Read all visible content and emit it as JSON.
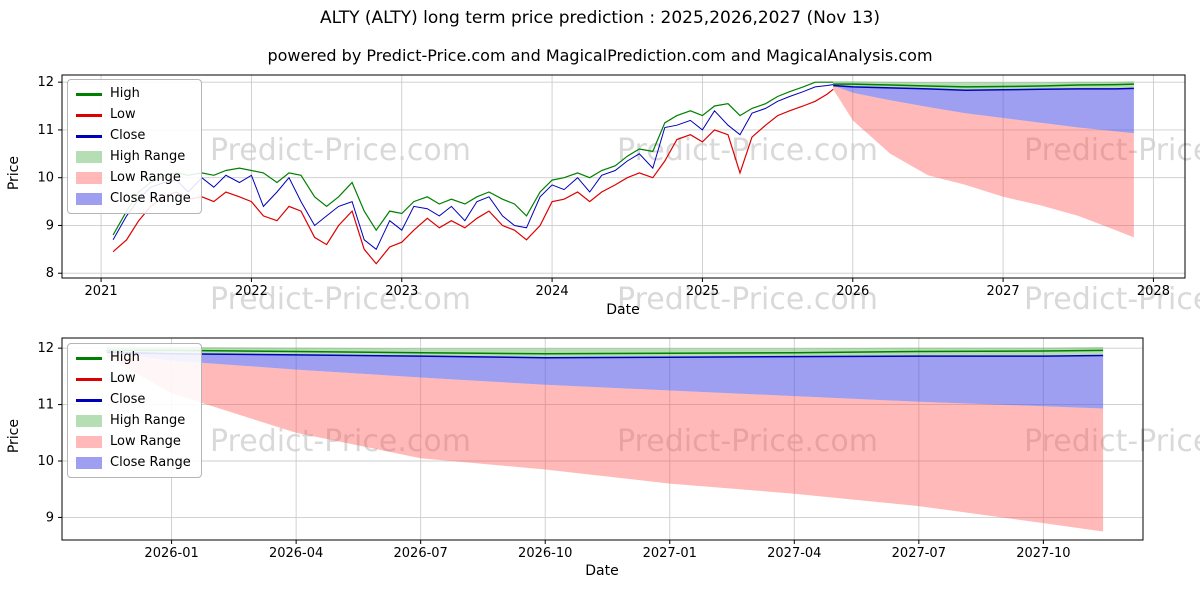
{
  "page": {
    "title": "ALTY (ALTY) long term price prediction : 2025,2026,2027 (Nov 13)",
    "subtitle": "powered by Predict-Price.com and MagicalPrediction.com and MagicalAnalysis.com",
    "watermark": "Predict-Price.com"
  },
  "colors": {
    "high": "#008000",
    "low": "#dd0000",
    "close": "#0000bb",
    "high_range": "rgba(44,160,44,0.35)",
    "low_range": "rgba(255,80,80,0.40)",
    "close_range": "rgba(80,80,230,0.55)",
    "grid": "#cccccc",
    "spine": "#000000",
    "watermark": "rgba(0,0,0,0.15)"
  },
  "legend": {
    "items": [
      {
        "label": "High",
        "swatch": "line",
        "color_key": "high"
      },
      {
        "label": "Low",
        "swatch": "line",
        "color_key": "low"
      },
      {
        "label": "Close",
        "swatch": "line",
        "color_key": "close"
      },
      {
        "label": "High Range",
        "swatch": "patch",
        "color_key": "high_range"
      },
      {
        "label": "Low Range",
        "swatch": "patch",
        "color_key": "low_range"
      },
      {
        "label": "Close Range",
        "swatch": "patch",
        "color_key": "close_range"
      }
    ]
  },
  "chart_data": [
    {
      "type": "line",
      "name": "historical-and-forecast",
      "xlabel": "Date",
      "ylabel": "Price",
      "grid": true,
      "legend_position": "upper left",
      "xlim": [
        2020.74,
        2028.21
      ],
      "ylim": [
        7.9,
        12.15
      ],
      "xticks": [
        {
          "v": 2021,
          "label": "2021"
        },
        {
          "v": 2022,
          "label": "2022"
        },
        {
          "v": 2023,
          "label": "2023"
        },
        {
          "v": 2024,
          "label": "2024"
        },
        {
          "v": 2025,
          "label": "2025"
        },
        {
          "v": 2026,
          "label": "2026"
        },
        {
          "v": 2027,
          "label": "2027"
        },
        {
          "v": 2028,
          "label": "2028"
        }
      ],
      "yticks": [
        8,
        9,
        10,
        11,
        12
      ],
      "historical_note": "columns are x(decimal year), high, low, close",
      "historical": [
        [
          2021.08,
          8.8,
          8.45,
          8.7
        ],
        [
          2021.17,
          9.3,
          8.7,
          9.2
        ],
        [
          2021.25,
          9.7,
          9.1,
          9.55
        ],
        [
          2021.33,
          9.9,
          9.4,
          9.8
        ],
        [
          2021.42,
          10.05,
          9.6,
          9.9
        ],
        [
          2021.5,
          10.1,
          9.7,
          9.95
        ],
        [
          2021.58,
          10.05,
          9.55,
          9.7
        ],
        [
          2021.67,
          10.1,
          9.6,
          10.0
        ],
        [
          2021.75,
          10.05,
          9.5,
          9.8
        ],
        [
          2021.83,
          10.15,
          9.7,
          10.05
        ],
        [
          2021.92,
          10.2,
          9.6,
          9.9
        ],
        [
          2022.0,
          10.15,
          9.5,
          10.05
        ],
        [
          2022.08,
          10.1,
          9.2,
          9.4
        ],
        [
          2022.17,
          9.9,
          9.1,
          9.7
        ],
        [
          2022.25,
          10.1,
          9.4,
          10.0
        ],
        [
          2022.33,
          10.05,
          9.3,
          9.5
        ],
        [
          2022.42,
          9.6,
          8.75,
          9.0
        ],
        [
          2022.5,
          9.4,
          8.6,
          9.2
        ],
        [
          2022.58,
          9.6,
          9.0,
          9.4
        ],
        [
          2022.67,
          9.9,
          9.3,
          9.5
        ],
        [
          2022.75,
          9.3,
          8.5,
          8.7
        ],
        [
          2022.83,
          8.9,
          8.2,
          8.5
        ],
        [
          2022.92,
          9.3,
          8.55,
          9.1
        ],
        [
          2023.0,
          9.25,
          8.65,
          8.9
        ],
        [
          2023.08,
          9.5,
          8.9,
          9.4
        ],
        [
          2023.17,
          9.6,
          9.15,
          9.35
        ],
        [
          2023.25,
          9.45,
          8.95,
          9.2
        ],
        [
          2023.33,
          9.55,
          9.1,
          9.4
        ],
        [
          2023.42,
          9.45,
          8.95,
          9.1
        ],
        [
          2023.5,
          9.6,
          9.15,
          9.5
        ],
        [
          2023.58,
          9.7,
          9.3,
          9.6
        ],
        [
          2023.67,
          9.55,
          9.0,
          9.2
        ],
        [
          2023.75,
          9.45,
          8.9,
          9.0
        ],
        [
          2023.83,
          9.2,
          8.7,
          8.95
        ],
        [
          2023.92,
          9.7,
          9.0,
          9.6
        ],
        [
          2024.0,
          9.95,
          9.5,
          9.85
        ],
        [
          2024.08,
          10.0,
          9.55,
          9.75
        ],
        [
          2024.17,
          10.1,
          9.7,
          10.0
        ],
        [
          2024.25,
          10.0,
          9.5,
          9.7
        ],
        [
          2024.33,
          10.15,
          9.7,
          10.05
        ],
        [
          2024.42,
          10.25,
          9.85,
          10.15
        ],
        [
          2024.5,
          10.45,
          10.0,
          10.35
        ],
        [
          2024.58,
          10.6,
          10.1,
          10.5
        ],
        [
          2024.67,
          10.55,
          10.0,
          10.2
        ],
        [
          2024.75,
          11.15,
          10.35,
          11.05
        ],
        [
          2024.83,
          11.3,
          10.8,
          11.1
        ],
        [
          2024.92,
          11.4,
          10.9,
          11.2
        ],
        [
          2025.0,
          11.3,
          10.75,
          11.0
        ],
        [
          2025.08,
          11.5,
          11.0,
          11.4
        ],
        [
          2025.17,
          11.55,
          10.9,
          11.1
        ],
        [
          2025.25,
          11.3,
          10.1,
          10.9
        ],
        [
          2025.33,
          11.45,
          10.85,
          11.35
        ],
        [
          2025.42,
          11.55,
          11.1,
          11.45
        ],
        [
          2025.5,
          11.7,
          11.3,
          11.6
        ],
        [
          2025.58,
          11.8,
          11.4,
          11.7
        ],
        [
          2025.67,
          11.9,
          11.5,
          11.8
        ],
        [
          2025.75,
          12.0,
          11.6,
          11.9
        ],
        [
          2025.83,
          12.0,
          11.75,
          11.93
        ],
        [
          2025.87,
          12.0,
          11.85,
          11.95
        ]
      ],
      "prediction": {
        "x": [
          2025.87,
          2026.0,
          2026.25,
          2026.5,
          2026.75,
          2027.0,
          2027.25,
          2027.5,
          2027.75,
          2027.87
        ],
        "high_top": [
          12.02,
          12.02,
          12.01,
          12.0,
          12.0,
          12.0,
          12.0,
          12.01,
          12.01,
          12.02
        ],
        "high_line": [
          11.96,
          11.96,
          11.94,
          11.92,
          11.9,
          11.91,
          11.92,
          11.94,
          11.95,
          11.96
        ],
        "high_bottom": [
          11.9,
          11.89,
          11.87,
          11.85,
          11.83,
          11.84,
          11.85,
          11.86,
          11.87,
          11.88
        ],
        "close_line": [
          11.93,
          11.9,
          11.88,
          11.86,
          11.83,
          11.84,
          11.85,
          11.86,
          11.86,
          11.87
        ],
        "close_bottom": [
          11.93,
          11.78,
          11.62,
          11.48,
          11.35,
          11.25,
          11.15,
          11.05,
          10.97,
          10.93
        ],
        "low_bottom": [
          11.85,
          11.2,
          10.5,
          10.05,
          9.85,
          9.6,
          9.42,
          9.2,
          8.9,
          8.75
        ]
      }
    },
    {
      "type": "line",
      "name": "forecast-detail",
      "xlabel": "Date",
      "ylabel": "Price",
      "grid": true,
      "legend_position": "upper left",
      "xlim": [
        2025.78,
        2027.95
      ],
      "ylim": [
        8.6,
        12.18
      ],
      "xticks": [
        {
          "v": 2026.0,
          "label": "2026-01"
        },
        {
          "v": 2026.25,
          "label": "2026-04"
        },
        {
          "v": 2026.5,
          "label": "2026-07"
        },
        {
          "v": 2026.75,
          "label": "2026-10"
        },
        {
          "v": 2027.0,
          "label": "2027-01"
        },
        {
          "v": 2027.25,
          "label": "2027-04"
        },
        {
          "v": 2027.5,
          "label": "2027-07"
        },
        {
          "v": 2027.75,
          "label": "2027-10"
        }
      ],
      "yticks": [
        9,
        10,
        11,
        12
      ],
      "prediction": {
        "x": [
          2025.87,
          2026.0,
          2026.25,
          2026.5,
          2026.75,
          2027.0,
          2027.25,
          2027.5,
          2027.75,
          2027.87
        ],
        "high_top": [
          12.02,
          12.02,
          12.01,
          12.0,
          12.0,
          12.0,
          12.0,
          12.01,
          12.01,
          12.02
        ],
        "high_line": [
          11.96,
          11.96,
          11.94,
          11.92,
          11.9,
          11.91,
          11.92,
          11.94,
          11.95,
          11.96
        ],
        "high_bottom": [
          11.9,
          11.89,
          11.87,
          11.85,
          11.83,
          11.84,
          11.85,
          11.86,
          11.87,
          11.88
        ],
        "close_line": [
          11.93,
          11.9,
          11.88,
          11.86,
          11.83,
          11.84,
          11.85,
          11.86,
          11.86,
          11.87
        ],
        "close_bottom": [
          11.93,
          11.78,
          11.62,
          11.48,
          11.35,
          11.25,
          11.15,
          11.05,
          10.97,
          10.93
        ],
        "low_bottom": [
          11.85,
          11.2,
          10.5,
          10.05,
          9.85,
          9.6,
          9.42,
          9.2,
          8.9,
          8.75
        ]
      }
    }
  ]
}
